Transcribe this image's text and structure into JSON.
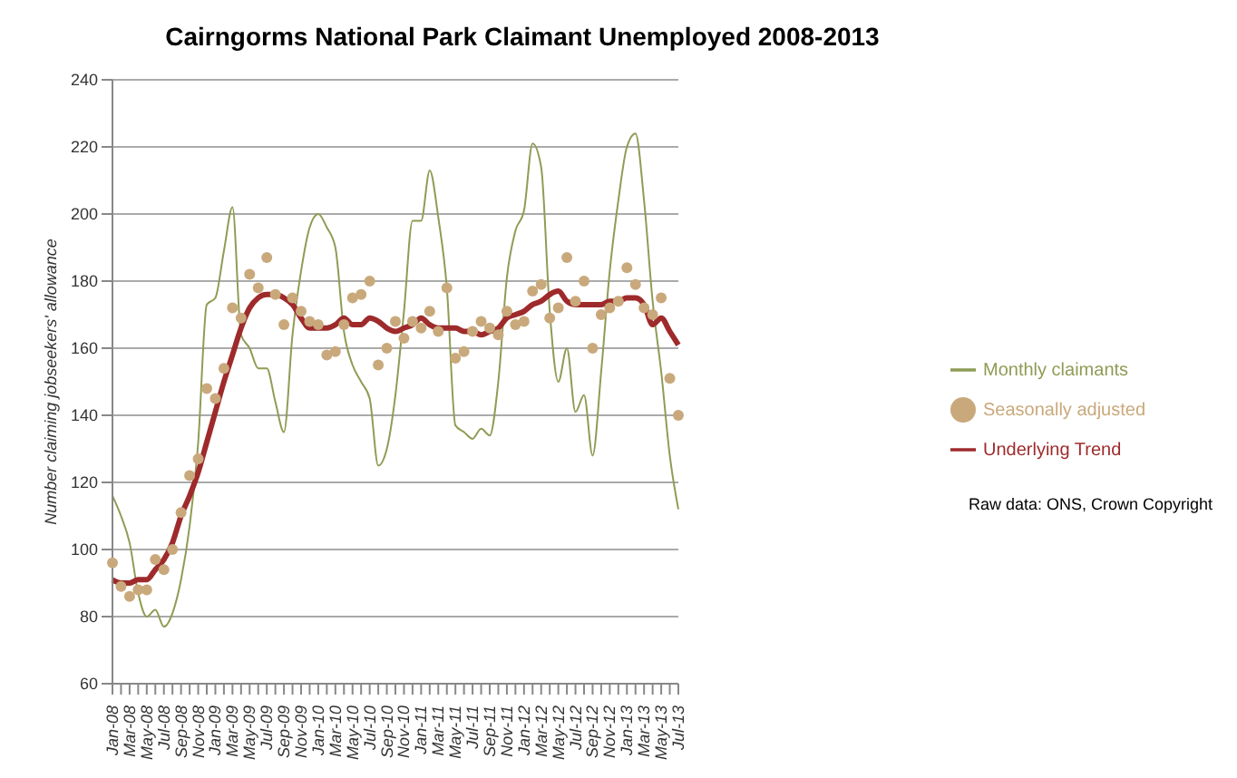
{
  "chart_data": {
    "type": "line",
    "title": "Cairngorms National Park Claimant Unemployed 2008-2013",
    "ylabel": "Number claiming jobseekers' allowance",
    "categories": [
      "Jan-08",
      null,
      "Mar-08",
      null,
      "May-08",
      null,
      "Jul-08",
      null,
      "Sep-08",
      null,
      "Nov-08",
      null,
      "Jan-09",
      null,
      "Mar-09",
      null,
      "May-09",
      null,
      "Jul-09",
      null,
      "Sep-09",
      null,
      "Nov-09",
      null,
      "Jan-10",
      null,
      "Mar-10",
      null,
      "May-10",
      null,
      "Jul-10",
      null,
      "Sep-10",
      null,
      "Nov-10",
      null,
      "Jan-11",
      null,
      "Mar-11",
      null,
      "May-11",
      null,
      "Jul-11",
      null,
      "Sep-11",
      null,
      "Nov-11",
      null,
      "Jan-12",
      null,
      "Mar-12",
      null,
      "May-12",
      null,
      "Jul-12",
      null,
      "Sep-12",
      null,
      "Nov-12",
      null,
      "Jan-13",
      null,
      "Mar-13",
      null,
      "May-13",
      null,
      "Jul-13"
    ],
    "series": [
      {
        "name": "Monthly claimants",
        "color": "#8f9c55",
        "values": [
          116,
          110,
          102,
          87,
          80,
          82,
          77,
          81,
          91,
          107,
          132,
          173,
          175,
          189,
          202,
          164,
          160,
          154,
          154,
          144,
          135,
          164,
          183,
          196,
          200,
          196,
          190,
          165,
          155,
          150,
          145,
          125,
          130,
          146,
          171,
          198,
          198,
          213,
          199,
          178,
          137,
          135,
          133,
          136,
          134,
          150,
          181,
          195,
          201,
          221,
          214,
          171,
          150,
          160,
          141,
          146,
          128,
          153,
          183,
          204,
          220,
          224,
          204,
          174,
          153,
          128,
          112
        ]
      },
      {
        "name": "Seasonally adjusted",
        "type": "scatter",
        "color": "#c9a97c",
        "values": [
          96,
          89,
          86,
          88,
          88,
          97,
          94,
          100,
          111,
          122,
          127,
          148,
          145,
          154,
          172,
          169,
          182,
          178,
          187,
          176,
          167,
          175,
          171,
          168,
          167,
          158,
          159,
          167,
          175,
          176,
          180,
          155,
          160,
          168,
          163,
          168,
          166,
          171,
          165,
          178,
          157,
          159,
          165,
          168,
          166,
          164,
          171,
          167,
          168,
          177,
          179,
          169,
          172,
          187,
          174,
          180,
          160,
          170,
          172,
          174,
          184,
          179,
          172,
          170,
          175,
          151,
          140
        ]
      },
      {
        "name": "Underlying Trend",
        "color": "#9e2a2b",
        "values": [
          91,
          90,
          90,
          91,
          91,
          94,
          97,
          102,
          110,
          116,
          123,
          132,
          141,
          150,
          158,
          166,
          172,
          175,
          176,
          176,
          175,
          173,
          169,
          166,
          166,
          166,
          167,
          169,
          167,
          167,
          169,
          168,
          166,
          165,
          166,
          167,
          169,
          167,
          166,
          166,
          166,
          165,
          165,
          164,
          165,
          166,
          169,
          170,
          171,
          173,
          174,
          176,
          177,
          174,
          173,
          173,
          173,
          173,
          174,
          174,
          175,
          175,
          173,
          167,
          169,
          165,
          161
        ]
      }
    ],
    "ylim": [
      60,
      240
    ],
    "yticks": [
      60,
      80,
      100,
      120,
      140,
      160,
      180,
      200,
      220,
      240
    ],
    "grid": "y",
    "legend": "right",
    "annotations": [
      "Raw data: ONS, Crown Copyright"
    ]
  }
}
